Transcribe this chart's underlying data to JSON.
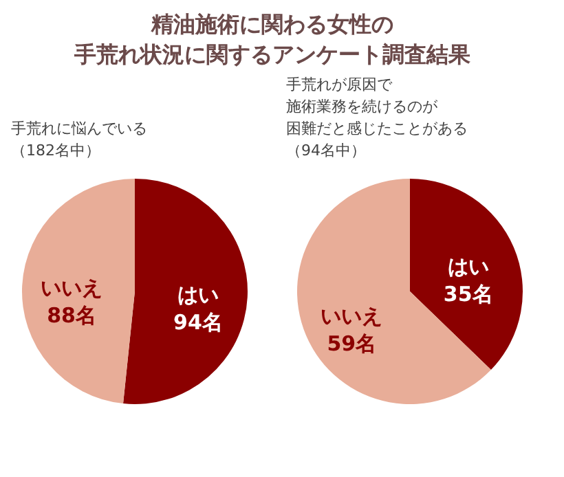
{
  "chart_data": [
    {
      "type": "pie",
      "title": "精油施術に関わる女性の手荒れ状況に関するアンケート調査結果",
      "subtitle": "手荒れに悩んでいる（182名中）",
      "categories": [
        "はい",
        "いいえ"
      ],
      "values": [
        94,
        88
      ],
      "value_labels": [
        "94名",
        "88名"
      ],
      "colors": [
        "#8b0000",
        "#e8ad98"
      ]
    },
    {
      "type": "pie",
      "subtitle": "手荒れが原因で施術業務を続けるのが困難だと感じたことがある（94名中）",
      "categories": [
        "はい",
        "いいえ"
      ],
      "values": [
        35,
        59
      ],
      "value_labels": [
        "35名",
        "59名"
      ],
      "colors": [
        "#8b0000",
        "#e8ad98"
      ]
    }
  ]
}
